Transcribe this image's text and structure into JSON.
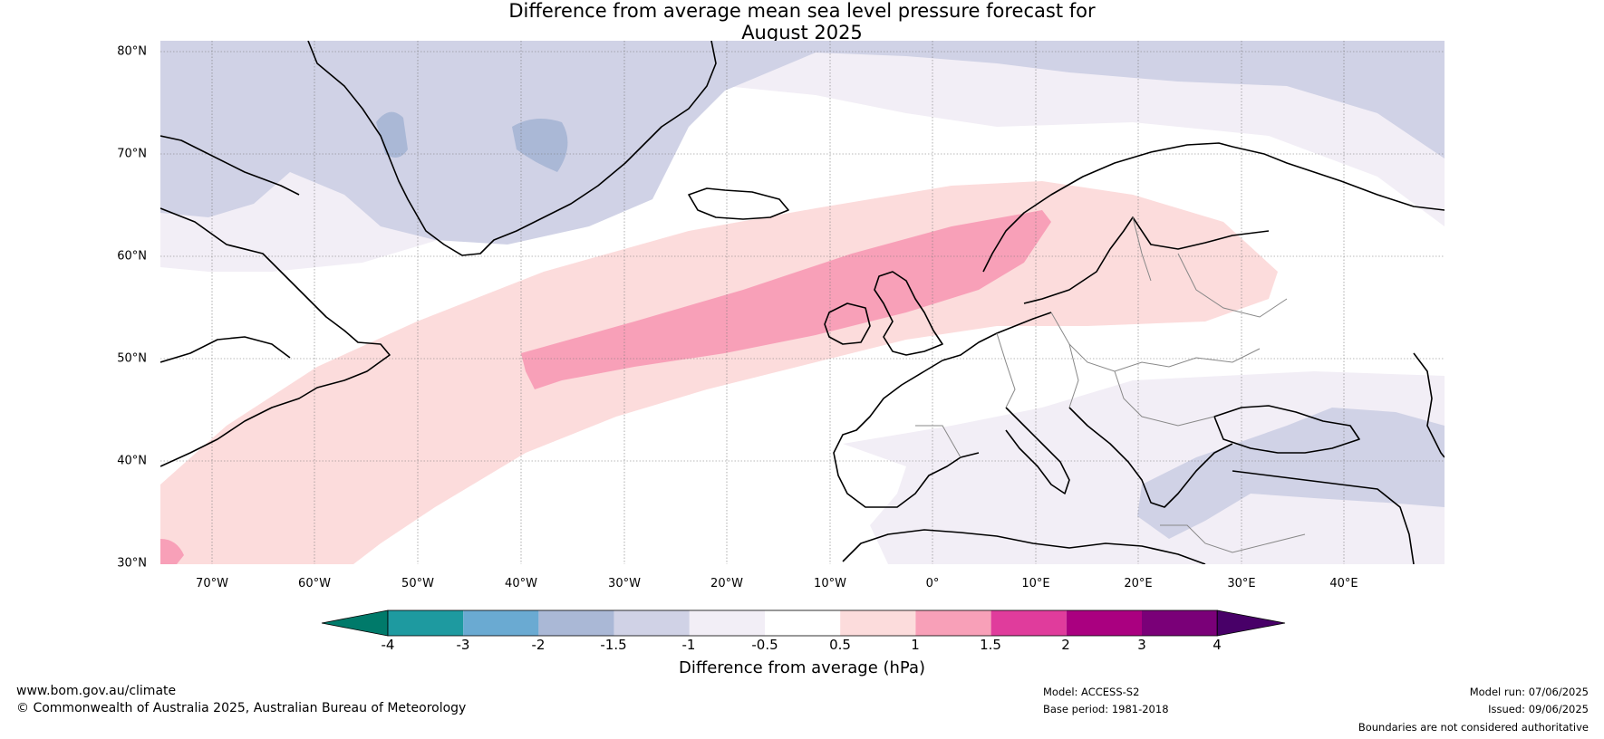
{
  "title_line1": "Difference from average mean sea level pressure forecast for",
  "title_line2": "August 2025",
  "map": {
    "lat_ticks": [
      "80°N",
      "70°N",
      "60°N",
      "50°N",
      "40°N",
      "30°N"
    ],
    "lon_ticks": [
      "70°W",
      "60°W",
      "50°W",
      "40°W",
      "30°W",
      "20°W",
      "10°W",
      "0°",
      "10°E",
      "20°E",
      "30°E",
      "40°E"
    ],
    "extent": {
      "lon": [
        -75,
        50
      ],
      "lat": [
        30,
        81
      ]
    },
    "gridlines": true
  },
  "colorbar": {
    "title": "Difference from average (hPa)",
    "labels": [
      "-4",
      "-3",
      "-2",
      "-1.5",
      "-1",
      "-0.5",
      "0.5",
      "1",
      "1.5",
      "2",
      "3",
      "4"
    ],
    "colors": [
      "#007a6a",
      "#1e9aa0",
      "#6aaad2",
      "#aab8d6",
      "#d0d2e6",
      "#f2eef6",
      "#ffffff",
      "#fcdcdc",
      "#f8a0b8",
      "#e03c9c",
      "#aa0080",
      "#7a0078",
      "#480068"
    ]
  },
  "footer": {
    "website": "www.bom.gov.au/climate",
    "copyright": "© Commonwealth of Australia 2025, Australian Bureau of Meteorology",
    "model": "Model: ACCESS-S2",
    "base_period": "Base period: 1981-2018",
    "model_run": "Model run: 07/06/2025",
    "issued": "Issued: 09/06/2025",
    "disclaimer": "Boundaries are not considered authoritative"
  }
}
